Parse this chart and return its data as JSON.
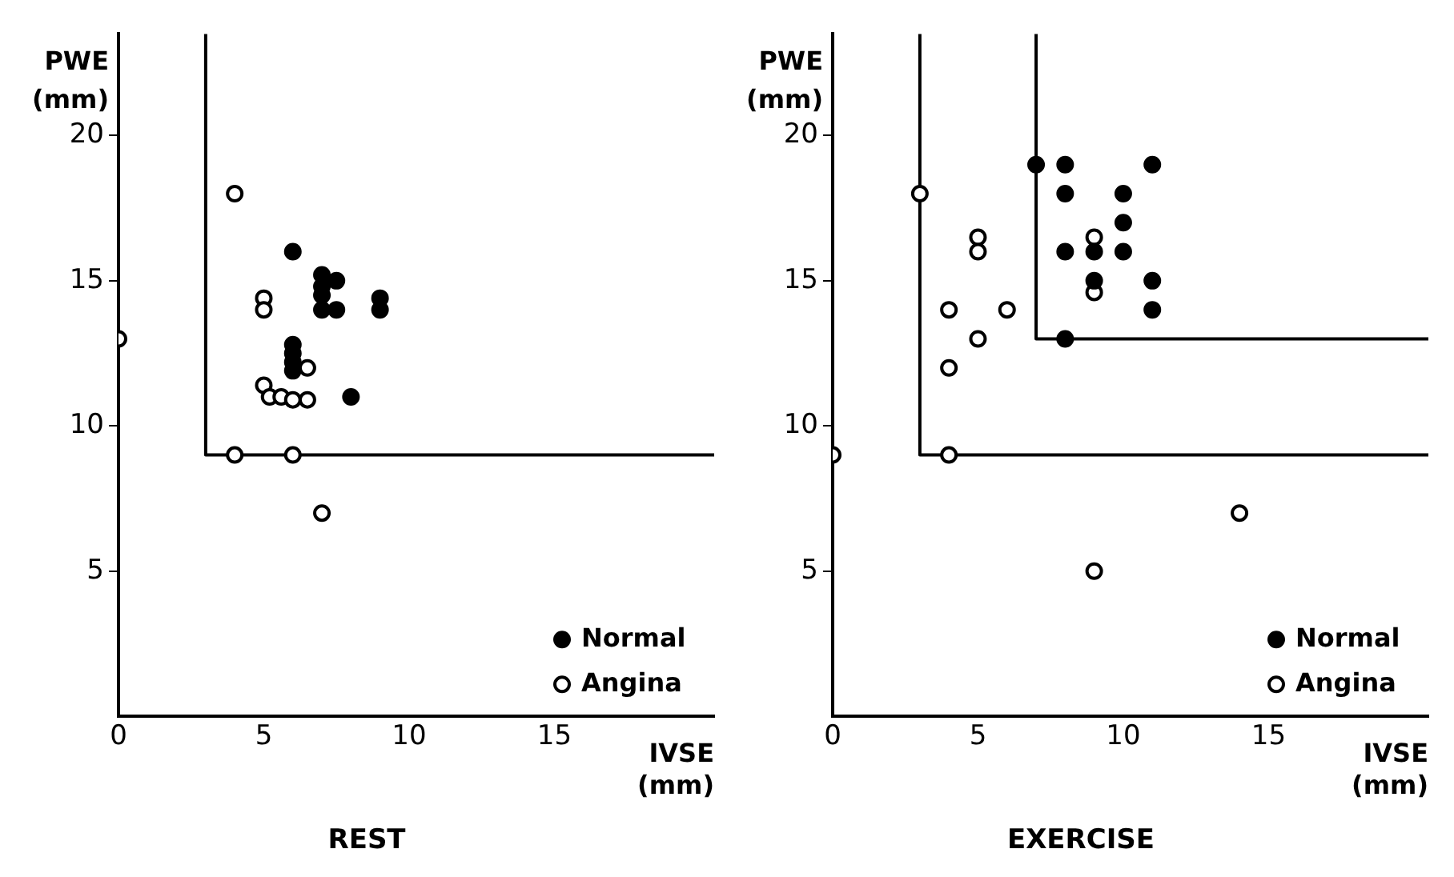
{
  "chart_data": [
    {
      "type": "scatter",
      "title": "REST",
      "xlabel": "IVSE\n(mm)",
      "ylabel": "PWE\n(mm)",
      "xlim": [
        0,
        20.5
      ],
      "ylim": [
        0,
        23.5
      ],
      "xticks": [
        0,
        5,
        10,
        15
      ],
      "yticks": [
        5,
        10,
        15,
        20
      ],
      "grid": false,
      "legend": "bottom right",
      "marker": "circle",
      "series": [
        {
          "name": "Normal",
          "color": "#000000",
          "x": [
            6,
            7,
            7,
            7,
            7,
            7.5,
            7.5,
            9,
            9,
            6,
            6,
            6,
            6,
            8
          ],
          "values": [
            16,
            15.2,
            14.8,
            14.5,
            14,
            15,
            14,
            14.4,
            14,
            12.8,
            12.5,
            12.2,
            11.9,
            11
          ]
        },
        {
          "name": "Angina",
          "color": "#ffffff",
          "x": [
            0,
            4,
            5,
            5,
            6.5,
            5,
            5.2,
            5.6,
            6,
            6.5,
            4,
            6,
            7
          ],
          "values": [
            13,
            18,
            14.4,
            14,
            12,
            11.4,
            11,
            11,
            10.9,
            10.9,
            9,
            9,
            7
          ]
        },
        {
          "type": "line",
          "color": "#000000",
          "marker": "none",
          "x": [
            3,
            3,
            20.5
          ],
          "values": [
            23.5,
            9,
            9
          ]
        }
      ]
    },
    {
      "type": "scatter",
      "title": "EXERCISE",
      "xlabel": "IVSE\n(mm)",
      "ylabel": "PWE\n(mm)",
      "xlim": [
        0,
        20.5
      ],
      "ylim": [
        0,
        23.5
      ],
      "xticks": [
        0,
        5,
        10,
        15
      ],
      "yticks": [
        5,
        10,
        15,
        20
      ],
      "grid": false,
      "legend": "bottom right",
      "marker": "circle",
      "series": [
        {
          "name": "Normal",
          "color": "#000000",
          "x": [
            7,
            8,
            11,
            8,
            10,
            10,
            8,
            9,
            10,
            9,
            11,
            11,
            8
          ],
          "values": [
            19,
            19,
            19,
            18,
            18,
            17,
            16,
            16,
            16,
            15,
            15,
            14,
            13
          ]
        },
        {
          "name": "Angina",
          "color": "#ffffff",
          "x": [
            3,
            5,
            5,
            9,
            9,
            4,
            6,
            5,
            4,
            0,
            4,
            9,
            14
          ],
          "values": [
            18,
            16.5,
            16,
            16.5,
            14.6,
            14,
            14,
            13,
            12,
            9,
            9,
            5,
            7
          ]
        },
        {
          "type": "line",
          "color": "#000000",
          "marker": "none",
          "x": [
            3,
            3,
            20.5
          ],
          "values": [
            23.5,
            9,
            9
          ]
        },
        {
          "type": "line",
          "color": "#000000",
          "marker": "none",
          "x": [
            7,
            7,
            20.5
          ],
          "values": [
            23.5,
            13,
            13
          ]
        }
      ]
    }
  ]
}
